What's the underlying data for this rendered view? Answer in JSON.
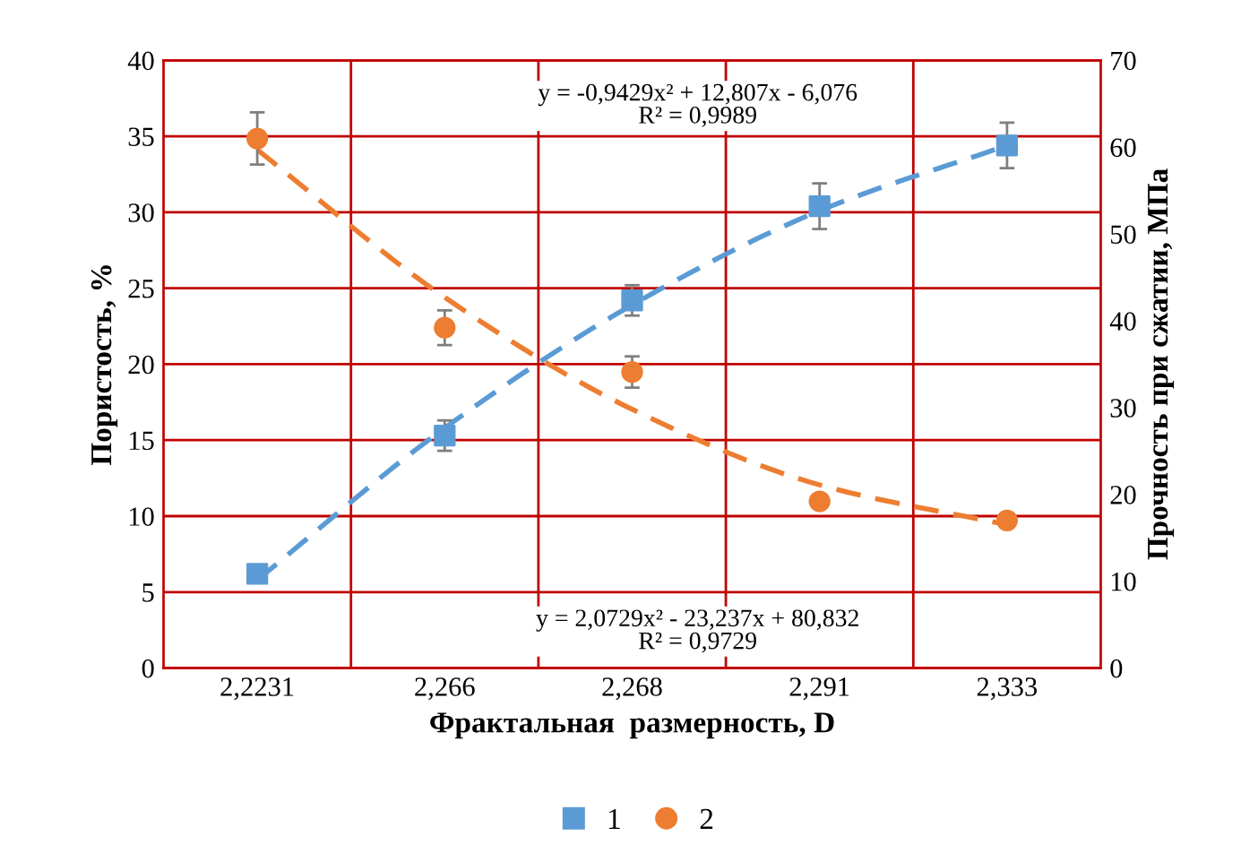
{
  "chart_data": {
    "type": "scatter",
    "xlabel": "Фрактальная  размерность, D",
    "ylabel": "Пористость, %",
    "y2label": "Прочность при сжатии, МПа",
    "categories": [
      "2,2231",
      "2,266",
      "2,268",
      "2,291",
      "2,333"
    ],
    "series": [
      {
        "name": "1",
        "color": "#5b9bd5",
        "marker": "square",
        "values": [
          6.2,
          15.3,
          24.2,
          30.4,
          34.4
        ],
        "errors": [
          null,
          1,
          1,
          1.5,
          1.5
        ]
      },
      {
        "name": "2",
        "color": "#ed7d31",
        "marker": "circle",
        "axis": "y2",
        "values": [
          61,
          39.2,
          34.1,
          19.2,
          17
        ],
        "errors": [
          3,
          2,
          1.8,
          null,
          null
        ]
      },
      {
        "type": "line",
        "color": "#5b9bd5",
        "line_style": "dashed",
        "marker": "none",
        "values": [
          5.8,
          15.8,
          23.9,
          30.1,
          34.4
        ]
      },
      {
        "type": "line",
        "color": "#ed7d31",
        "line_style": "dashed",
        "marker": "none",
        "axis": "y2",
        "values": [
          59.7,
          42.7,
          29.8,
          21.1,
          16.5
        ]
      }
    ],
    "ylim": [
      0,
      40
    ],
    "yticks": [
      0,
      5,
      10,
      15,
      20,
      25,
      30,
      35,
      40
    ],
    "y2lim": [
      0,
      70
    ],
    "y2ticks": [
      0,
      10,
      20,
      30,
      40,
      50,
      60,
      70
    ],
    "grid": true,
    "legend": "bottom",
    "annotations": [
      "y = -0,9429x² + 12,807x - 6,076\nR² = 0,9989",
      "y = 2,0729x² - 23,237x + 80,832\nR² = 0,9729"
    ]
  }
}
